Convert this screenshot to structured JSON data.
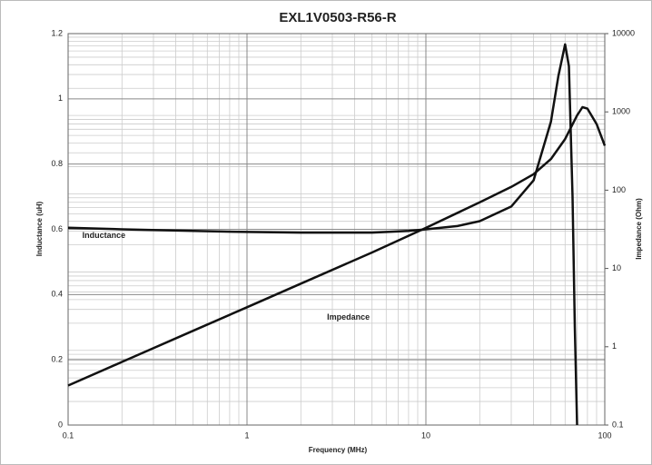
{
  "chart_data": {
    "type": "line",
    "title": "EXL1V0503-R56-R",
    "x_label": "Frequency (MHz)",
    "y_label": "Inductance (uH)",
    "y2_label": "Impedance (Ohm)",
    "x_log": true,
    "y2_log": true,
    "grid": true,
    "xlim": [
      0.1,
      100
    ],
    "xticks": [
      0.1,
      1,
      10,
      100
    ],
    "ylim": [
      0,
      1.2
    ],
    "yticks": [
      0,
      0.2,
      0.4,
      0.6,
      0.8,
      1,
      1.2
    ],
    "y2lim": [
      0.1,
      10000
    ],
    "y2ticks": [
      0.1,
      1,
      10,
      100,
      1000,
      10000
    ],
    "annotations": [
      {
        "text": "Inductance",
        "x": 0.12,
        "y": 0.58
      },
      {
        "text": "Impedance",
        "x": 2.8,
        "y": 0.33
      }
    ],
    "series": [
      {
        "name": "Inductance",
        "color": "#111111",
        "x": [
          0.1,
          0.2,
          0.5,
          1,
          2,
          5,
          8,
          10,
          15,
          20,
          30,
          40,
          50,
          55,
          60,
          63,
          66,
          68,
          70
        ],
        "values": [
          0.605,
          0.6,
          0.595,
          0.592,
          0.59,
          0.59,
          0.595,
          0.6,
          0.61,
          0.625,
          0.67,
          0.75,
          0.93,
          1.07,
          1.167,
          1.1,
          0.7,
          0.3,
          0
        ]
      },
      {
        "name": "Impedance",
        "color": "#111111",
        "axis": "y2",
        "x": [
          0.1,
          0.2,
          0.5,
          1,
          2,
          5,
          10,
          20,
          30,
          40,
          50,
          60,
          70,
          75,
          80,
          90,
          100
        ],
        "values": [
          0.32,
          0.64,
          1.6,
          3.2,
          6.4,
          16,
          33,
          70,
          110,
          160,
          250,
          450,
          900,
          1150,
          1100,
          700,
          370
        ]
      }
    ]
  }
}
